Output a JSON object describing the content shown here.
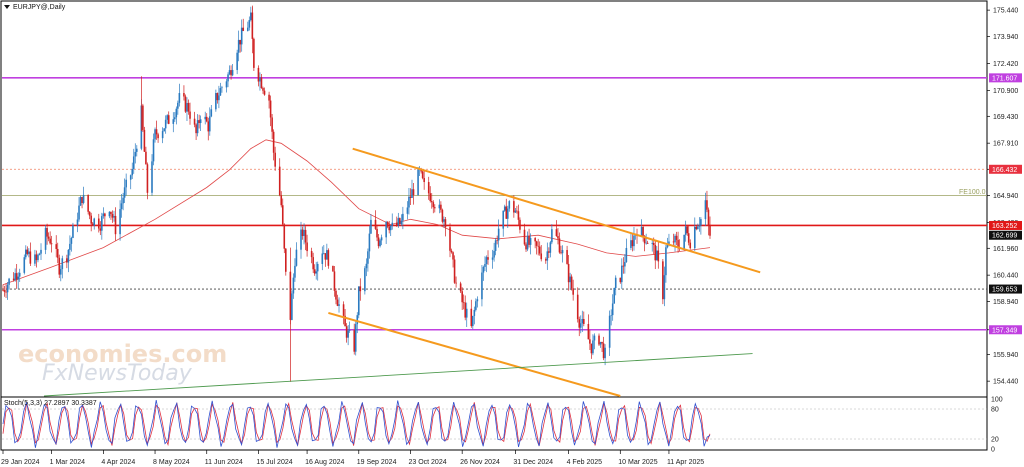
{
  "chart_data": {
    "type": "candlestick",
    "symbol_title": "EURJPY@,Daily",
    "price_axis": {
      "range": [
        153.6,
        175.9
      ],
      "ticks": [
        "175.440",
        "173.940",
        "172.420",
        "170.900",
        "169.430",
        "167.910",
        "166.432",
        "164.940",
        "163.420",
        "161.960",
        "160.440",
        "158.940",
        "157.349",
        "155.940",
        "154.440"
      ]
    },
    "time_axis": {
      "start": "2024-01-29",
      "end": "2025-05-08",
      "ticks": [
        {
          "date": "2024-01-29",
          "label": "29 Jan 2024"
        },
        {
          "date": "2024-03-01",
          "label": "1 Mar 2024"
        },
        {
          "date": "2024-04-04",
          "label": "4 Apr 2024"
        },
        {
          "date": "2024-05-08",
          "label": "8 May 2024"
        },
        {
          "date": "2024-06-11",
          "label": "11 Jun 2024"
        },
        {
          "date": "2024-07-15",
          "label": "15 Jul 2024"
        },
        {
          "date": "2024-08-16",
          "label": "16 Aug 2024"
        },
        {
          "date": "2024-09-19",
          "label": "19 Sep 2024"
        },
        {
          "date": "2024-10-23",
          "label": "23 Oct 2024"
        },
        {
          "date": "2024-11-26",
          "label": "26 Nov 2024"
        },
        {
          "date": "2024-12-31",
          "label": "31 Dec 2024"
        },
        {
          "date": "2025-02-04",
          "label": "4 Feb 2025"
        },
        {
          "date": "2025-03-10",
          "label": "10 Mar 2025"
        },
        {
          "date": "2025-04-11",
          "label": "11 Apr 2025"
        }
      ]
    },
    "price_path": [
      [
        "2024-01-29",
        159.6
      ],
      [
        "2024-02-02",
        160.1
      ],
      [
        "2024-02-08",
        160.7
      ],
      [
        "2024-02-14",
        161.6
      ],
      [
        "2024-02-20",
        161.2
      ],
      [
        "2024-02-26",
        162.7
      ],
      [
        "2024-03-01",
        162.4
      ],
      [
        "2024-03-06",
        160.9
      ],
      [
        "2024-03-11",
        161.6
      ],
      [
        "2024-03-15",
        162.9
      ],
      [
        "2024-03-21",
        164.9
      ],
      [
        "2024-03-27",
        163.6
      ],
      [
        "2024-04-02",
        163.4
      ],
      [
        "2024-04-08",
        164.4
      ],
      [
        "2024-04-12",
        163.1
      ],
      [
        "2024-04-17",
        164.9
      ],
      [
        "2024-04-23",
        166.4
      ],
      [
        "2024-04-29",
        169.6
      ],
      [
        "2024-05-03",
        165.2
      ],
      [
        "2024-05-08",
        168.4
      ],
      [
        "2024-05-14",
        168.9
      ],
      [
        "2024-05-20",
        169.6
      ],
      [
        "2024-05-24",
        170.4
      ],
      [
        "2024-05-30",
        169.9
      ],
      [
        "2024-06-04",
        168.4
      ],
      [
        "2024-06-07",
        169.6
      ],
      [
        "2024-06-12",
        168.9
      ],
      [
        "2024-06-17",
        170.4
      ],
      [
        "2024-06-21",
        171.1
      ],
      [
        "2024-06-26",
        171.9
      ],
      [
        "2024-07-01",
        173.4
      ],
      [
        "2024-07-05",
        174.2
      ],
      [
        "2024-07-10",
        174.9
      ],
      [
        "2024-07-12",
        172.4
      ],
      [
        "2024-07-17",
        171.4
      ],
      [
        "2024-07-22",
        170.4
      ],
      [
        "2024-07-25",
        167.4
      ],
      [
        "2024-07-30",
        164.4
      ],
      [
        "2024-08-02",
        160.4
      ],
      [
        "2024-08-05",
        158.1
      ],
      [
        "2024-08-08",
        161.4
      ],
      [
        "2024-08-13",
        162.9
      ],
      [
        "2024-08-16",
        162.1
      ],
      [
        "2024-08-21",
        160.9
      ],
      [
        "2024-08-26",
        161.9
      ],
      [
        "2024-08-30",
        161.4
      ],
      [
        "2024-09-04",
        159.4
      ],
      [
        "2024-09-10",
        157.4
      ],
      [
        "2024-09-16",
        156.4
      ],
      [
        "2024-09-19",
        159.4
      ],
      [
        "2024-09-24",
        160.9
      ],
      [
        "2024-09-27",
        163.4
      ],
      [
        "2024-10-02",
        162.4
      ],
      [
        "2024-10-07",
        163.6
      ],
      [
        "2024-10-11",
        163.1
      ],
      [
        "2024-10-17",
        163.4
      ],
      [
        "2024-10-23",
        164.9
      ],
      [
        "2024-10-29",
        166.2
      ],
      [
        "2024-11-01",
        165.4
      ],
      [
        "2024-11-06",
        164.9
      ],
      [
        "2024-11-12",
        163.9
      ],
      [
        "2024-11-15",
        163.6
      ],
      [
        "2024-11-19",
        161.4
      ],
      [
        "2024-11-22",
        159.9
      ],
      [
        "2024-11-26",
        158.9
      ],
      [
        "2024-12-02",
        157.4
      ],
      [
        "2024-12-06",
        159.4
      ],
      [
        "2024-12-12",
        161.4
      ],
      [
        "2024-12-17",
        161.9
      ],
      [
        "2024-12-20",
        163.1
      ],
      [
        "2024-12-24",
        163.9
      ],
      [
        "2024-12-27",
        164.4
      ],
      [
        "2024-12-31",
        164.1
      ],
      [
        "2025-01-06",
        162.4
      ],
      [
        "2025-01-10",
        162.1
      ],
      [
        "2025-01-15",
        161.9
      ],
      [
        "2025-01-20",
        161.4
      ],
      [
        "2025-01-24",
        162.9
      ],
      [
        "2025-01-28",
        162.4
      ],
      [
        "2025-02-01",
        161.4
      ],
      [
        "2025-02-04",
        160.4
      ],
      [
        "2025-02-07",
        159.4
      ],
      [
        "2025-02-11",
        157.9
      ],
      [
        "2025-02-14",
        157.4
      ],
      [
        "2025-02-19",
        156.4
      ],
      [
        "2025-02-24",
        156.9
      ],
      [
        "2025-02-28",
        155.9
      ],
      [
        "2025-03-04",
        158.4
      ],
      [
        "2025-03-07",
        159.9
      ],
      [
        "2025-03-10",
        160.4
      ],
      [
        "2025-03-13",
        161.4
      ],
      [
        "2025-03-18",
        162.4
      ],
      [
        "2025-03-21",
        163.1
      ],
      [
        "2025-03-26",
        162.6
      ],
      [
        "2025-03-31",
        162.1
      ],
      [
        "2025-04-03",
        161.4
      ],
      [
        "2025-04-07",
        159.4
      ],
      [
        "2025-04-09",
        161.9
      ],
      [
        "2025-04-14",
        162.4
      ],
      [
        "2025-04-17",
        162.1
      ],
      [
        "2025-04-22",
        162.9
      ],
      [
        "2025-04-25",
        162.4
      ],
      [
        "2025-04-29",
        163.4
      ],
      [
        "2025-05-02",
        163.6
      ],
      [
        "2025-05-05",
        164.6
      ],
      [
        "2025-05-07",
        163.1
      ],
      [
        "2025-05-08",
        162.7
      ]
    ],
    "moving_average": [
      [
        "2024-01-29",
        159.9
      ],
      [
        "2024-03-01",
        160.9
      ],
      [
        "2024-04-04",
        162.0
      ],
      [
        "2024-05-08",
        163.6
      ],
      [
        "2024-06-11",
        165.4
      ],
      [
        "2024-06-26",
        166.4
      ],
      [
        "2024-07-10",
        167.6
      ],
      [
        "2024-07-20",
        168.1
      ],
      [
        "2024-07-30",
        167.9
      ],
      [
        "2024-08-16",
        166.9
      ],
      [
        "2024-09-01",
        165.7
      ],
      [
        "2024-09-19",
        164.2
      ],
      [
        "2024-10-10",
        163.3
      ],
      [
        "2024-10-23",
        163.6
      ],
      [
        "2024-11-10",
        163.3
      ],
      [
        "2024-11-26",
        162.7
      ],
      [
        "2024-12-20",
        162.5
      ],
      [
        "2025-01-15",
        162.7
      ],
      [
        "2025-02-10",
        162.2
      ],
      [
        "2025-03-01",
        161.7
      ],
      [
        "2025-03-20",
        161.5
      ],
      [
        "2025-04-11",
        161.7
      ],
      [
        "2025-05-08",
        162.0
      ]
    ],
    "trendlines": [
      {
        "name": "descending-channel-upper",
        "color": "#f59a1e",
        "from": [
          "2024-09-15",
          167.6
        ],
        "to": [
          "2025-06-10",
          160.6
        ]
      },
      {
        "name": "descending-channel-lower",
        "color": "#f59a1e",
        "from": [
          "2024-08-30",
          158.3
        ],
        "to": [
          "2025-03-10",
          153.6
        ]
      },
      {
        "name": "long-term-support",
        "color": "#4f9a4f",
        "from": [
          "2024-02-25",
          153.6
        ],
        "to": [
          "2025-06-05",
          156.0
        ]
      }
    ],
    "levels": [
      {
        "value": 171.607,
        "label": "171.607",
        "color": "#c040e0",
        "style": "solid",
        "box": "#c040e0"
      },
      {
        "value": 166.432,
        "label": "166.432",
        "color": "#f08060",
        "style": "dotted",
        "box": "#e8303e"
      },
      {
        "value": 164.94,
        "label": "FE100.0",
        "color": "#9aa060",
        "style": "solid",
        "box": ""
      },
      {
        "value": 163.252,
        "label": "163.252",
        "color": "#e01818",
        "style": "solid",
        "box": "#e01818"
      },
      {
        "value": 162.699,
        "label": "162.699",
        "color": "#000000",
        "style": "none",
        "box": "#101010"
      },
      {
        "value": 159.653,
        "label": "159.653",
        "color": "#404040",
        "style": "dotted",
        "box": "#101010"
      },
      {
        "value": 157.349,
        "label": "157.349",
        "color": "#c040e0",
        "style": "solid",
        "box": "#c040e0"
      }
    ],
    "stochastic": {
      "title": "Stoch(5,3,3) 27.2897 30.3387",
      "range": [
        0,
        100
      ],
      "ticks": [
        "100",
        "80",
        "20",
        "0"
      ],
      "k_color": "#3050d0",
      "d_color": "#e03040",
      "cycles": 38,
      "last_k": 27.2897,
      "last_d": 30.3387
    },
    "watermarks": [
      "economies.com",
      "FxNewsToday"
    ]
  }
}
